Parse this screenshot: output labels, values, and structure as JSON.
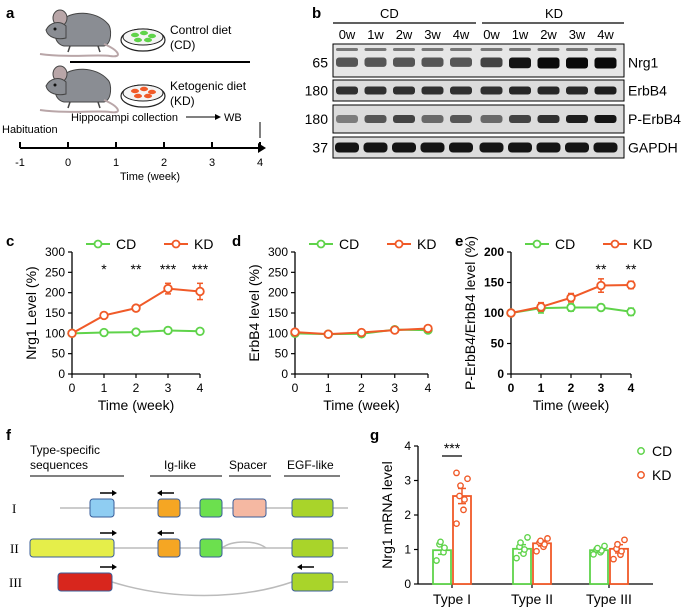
{
  "panels": {
    "a": "a",
    "b": "b",
    "c": "c",
    "d": "d",
    "e": "e",
    "f": "f",
    "g": "g"
  },
  "panel_a": {
    "diet1": "Control diet",
    "diet1_abbr": "(CD)",
    "diet2": "Ketogenic diet",
    "diet2_abbr": "(KD)",
    "habituation": "Habituation",
    "collection": "Hippocampi collection",
    "wb": "WB",
    "ticks": [
      "-1",
      "0",
      "1",
      "2",
      "3",
      "4"
    ],
    "axis_label": "Time (week)",
    "colors": {
      "control_pellets": "#5fd34a",
      "keto_pellets": "#f05a28"
    }
  },
  "panel_b": {
    "groups": [
      "CD",
      "KD"
    ],
    "lanes": [
      "0w",
      "1w",
      "2w",
      "3w",
      "4w",
      "0w",
      "1w",
      "2w",
      "3w",
      "4w"
    ],
    "rows": [
      {
        "mw": "65",
        "label": "Nrg1"
      },
      {
        "mw": "180",
        "label": "ErbB4"
      },
      {
        "mw": "180",
        "label": "P-ErbB4"
      },
      {
        "mw": "37",
        "label": "GAPDH"
      }
    ]
  },
  "chart_data": [
    {
      "type": "line",
      "panel": "c",
      "xlabel": "Time (week)",
      "ylabel": "Nrg1 Level (%)",
      "x": [
        0,
        1,
        2,
        3,
        4
      ],
      "xticks": [
        "0",
        "1",
        "2",
        "3",
        "4"
      ],
      "ylim": [
        0,
        300
      ],
      "yticks": [
        "0",
        "50",
        "100",
        "150",
        "200",
        "250",
        "300"
      ],
      "legend": "top",
      "series": [
        {
          "name": "CD",
          "color": "#5fd34a",
          "values": [
            100,
            102,
            103,
            107,
            105
          ],
          "err": [
            3,
            3,
            3,
            7,
            4
          ]
        },
        {
          "name": "KD",
          "color": "#f05a28",
          "values": [
            100,
            144,
            162,
            210,
            203
          ],
          "err": [
            3,
            7,
            5,
            13,
            20
          ]
        }
      ],
      "annotations": [
        {
          "x": 1,
          "text": "*"
        },
        {
          "x": 2,
          "text": "**"
        },
        {
          "x": 3,
          "text": "***"
        },
        {
          "x": 4,
          "text": "***"
        }
      ]
    },
    {
      "type": "line",
      "panel": "d",
      "xlabel": "Time (week)",
      "ylabel": "ErbB4 level (%)",
      "x": [
        0,
        1,
        2,
        3,
        4
      ],
      "xticks": [
        "0",
        "1",
        "2",
        "3",
        "4"
      ],
      "ylim": [
        0,
        300
      ],
      "yticks": [
        "0",
        "50",
        "100",
        "150",
        "200",
        "250",
        "300"
      ],
      "legend": "top",
      "series": [
        {
          "name": "CD",
          "color": "#5fd34a",
          "values": [
            100,
            98,
            99,
            109,
            108
          ],
          "err": [
            2,
            2,
            2,
            3,
            3
          ]
        },
        {
          "name": "KD",
          "color": "#f05a28",
          "values": [
            103,
            98,
            102,
            108,
            112
          ],
          "err": [
            2,
            2,
            2,
            3,
            3
          ]
        }
      ],
      "annotations": []
    },
    {
      "type": "line",
      "panel": "e",
      "xlabel": "Time (week)",
      "ylabel": "P-ErbB4/ErbB4 level (%)",
      "x": [
        0,
        1,
        2,
        3,
        4
      ],
      "xticks": [
        "0",
        "1",
        "2",
        "3",
        "4"
      ],
      "ylim": [
        0,
        200
      ],
      "yticks": [
        "0",
        "50",
        "100",
        "150",
        "200"
      ],
      "legend": "top",
      "series": [
        {
          "name": "CD",
          "color": "#5fd34a",
          "values": [
            100,
            108,
            109,
            109,
            102
          ],
          "err": [
            3,
            8,
            6,
            5,
            6
          ]
        },
        {
          "name": "KD",
          "color": "#f05a28",
          "values": [
            100,
            110,
            125,
            145,
            146
          ],
          "err": [
            3,
            7,
            7,
            11,
            6
          ]
        }
      ],
      "annotations": [
        {
          "x": 3,
          "text": "**"
        },
        {
          "x": 4,
          "text": "**"
        }
      ]
    },
    {
      "type": "bar",
      "panel": "g",
      "categories": [
        "Type I",
        "Type II",
        "Type III"
      ],
      "ylabel": "Nrg1 mRNA level",
      "ylim": [
        0,
        4
      ],
      "yticks": [
        "0",
        "1",
        "2",
        "3",
        "4"
      ],
      "legend": "top-right",
      "series": [
        {
          "name": "CD",
          "color": "#5fd34a",
          "values": [
            0.98,
            1.02,
            0.98
          ],
          "err": [
            0.12,
            0.12,
            0.07
          ],
          "points": [
            [
              0.68,
              0.92,
              1.05,
              1.15,
              1.22
            ],
            [
              0.75,
              0.88,
              1.0,
              1.08,
              1.2,
              1.35
            ],
            [
              0.86,
              0.92,
              0.97,
              1.0,
              1.04,
              1.1
            ]
          ]
        },
        {
          "name": "KD",
          "color": "#f05a28",
          "values": [
            2.55,
            1.18,
            1.02
          ],
          "err": [
            0.22,
            0.08,
            0.12
          ],
          "points": [
            [
              1.75,
              2.15,
              2.45,
              2.55,
              2.85,
              3.05,
              3.22
            ],
            [
              0.95,
              1.08,
              1.15,
              1.2,
              1.25,
              1.32
            ],
            [
              0.72,
              0.85,
              0.95,
              1.02,
              1.15,
              1.28
            ]
          ]
        }
      ],
      "annotations": [
        {
          "category": "Type I",
          "text": "***"
        }
      ]
    }
  ],
  "panel_f": {
    "headers": [
      "Type-specific sequences",
      "Ig-like",
      "Spacer",
      "EGF-like"
    ],
    "header_line1": "Type-specific",
    "header_line2": "sequences",
    "rows": [
      "I",
      "II",
      "III"
    ],
    "colors": {
      "type1": "#8fcdf2",
      "type2": "#e5ee4a",
      "type3": "#d8261d",
      "ig1": "#f5a623",
      "ig2": "#6ce04e",
      "spacer": "#f5b8a2",
      "egf": "#a9d42a"
    }
  }
}
